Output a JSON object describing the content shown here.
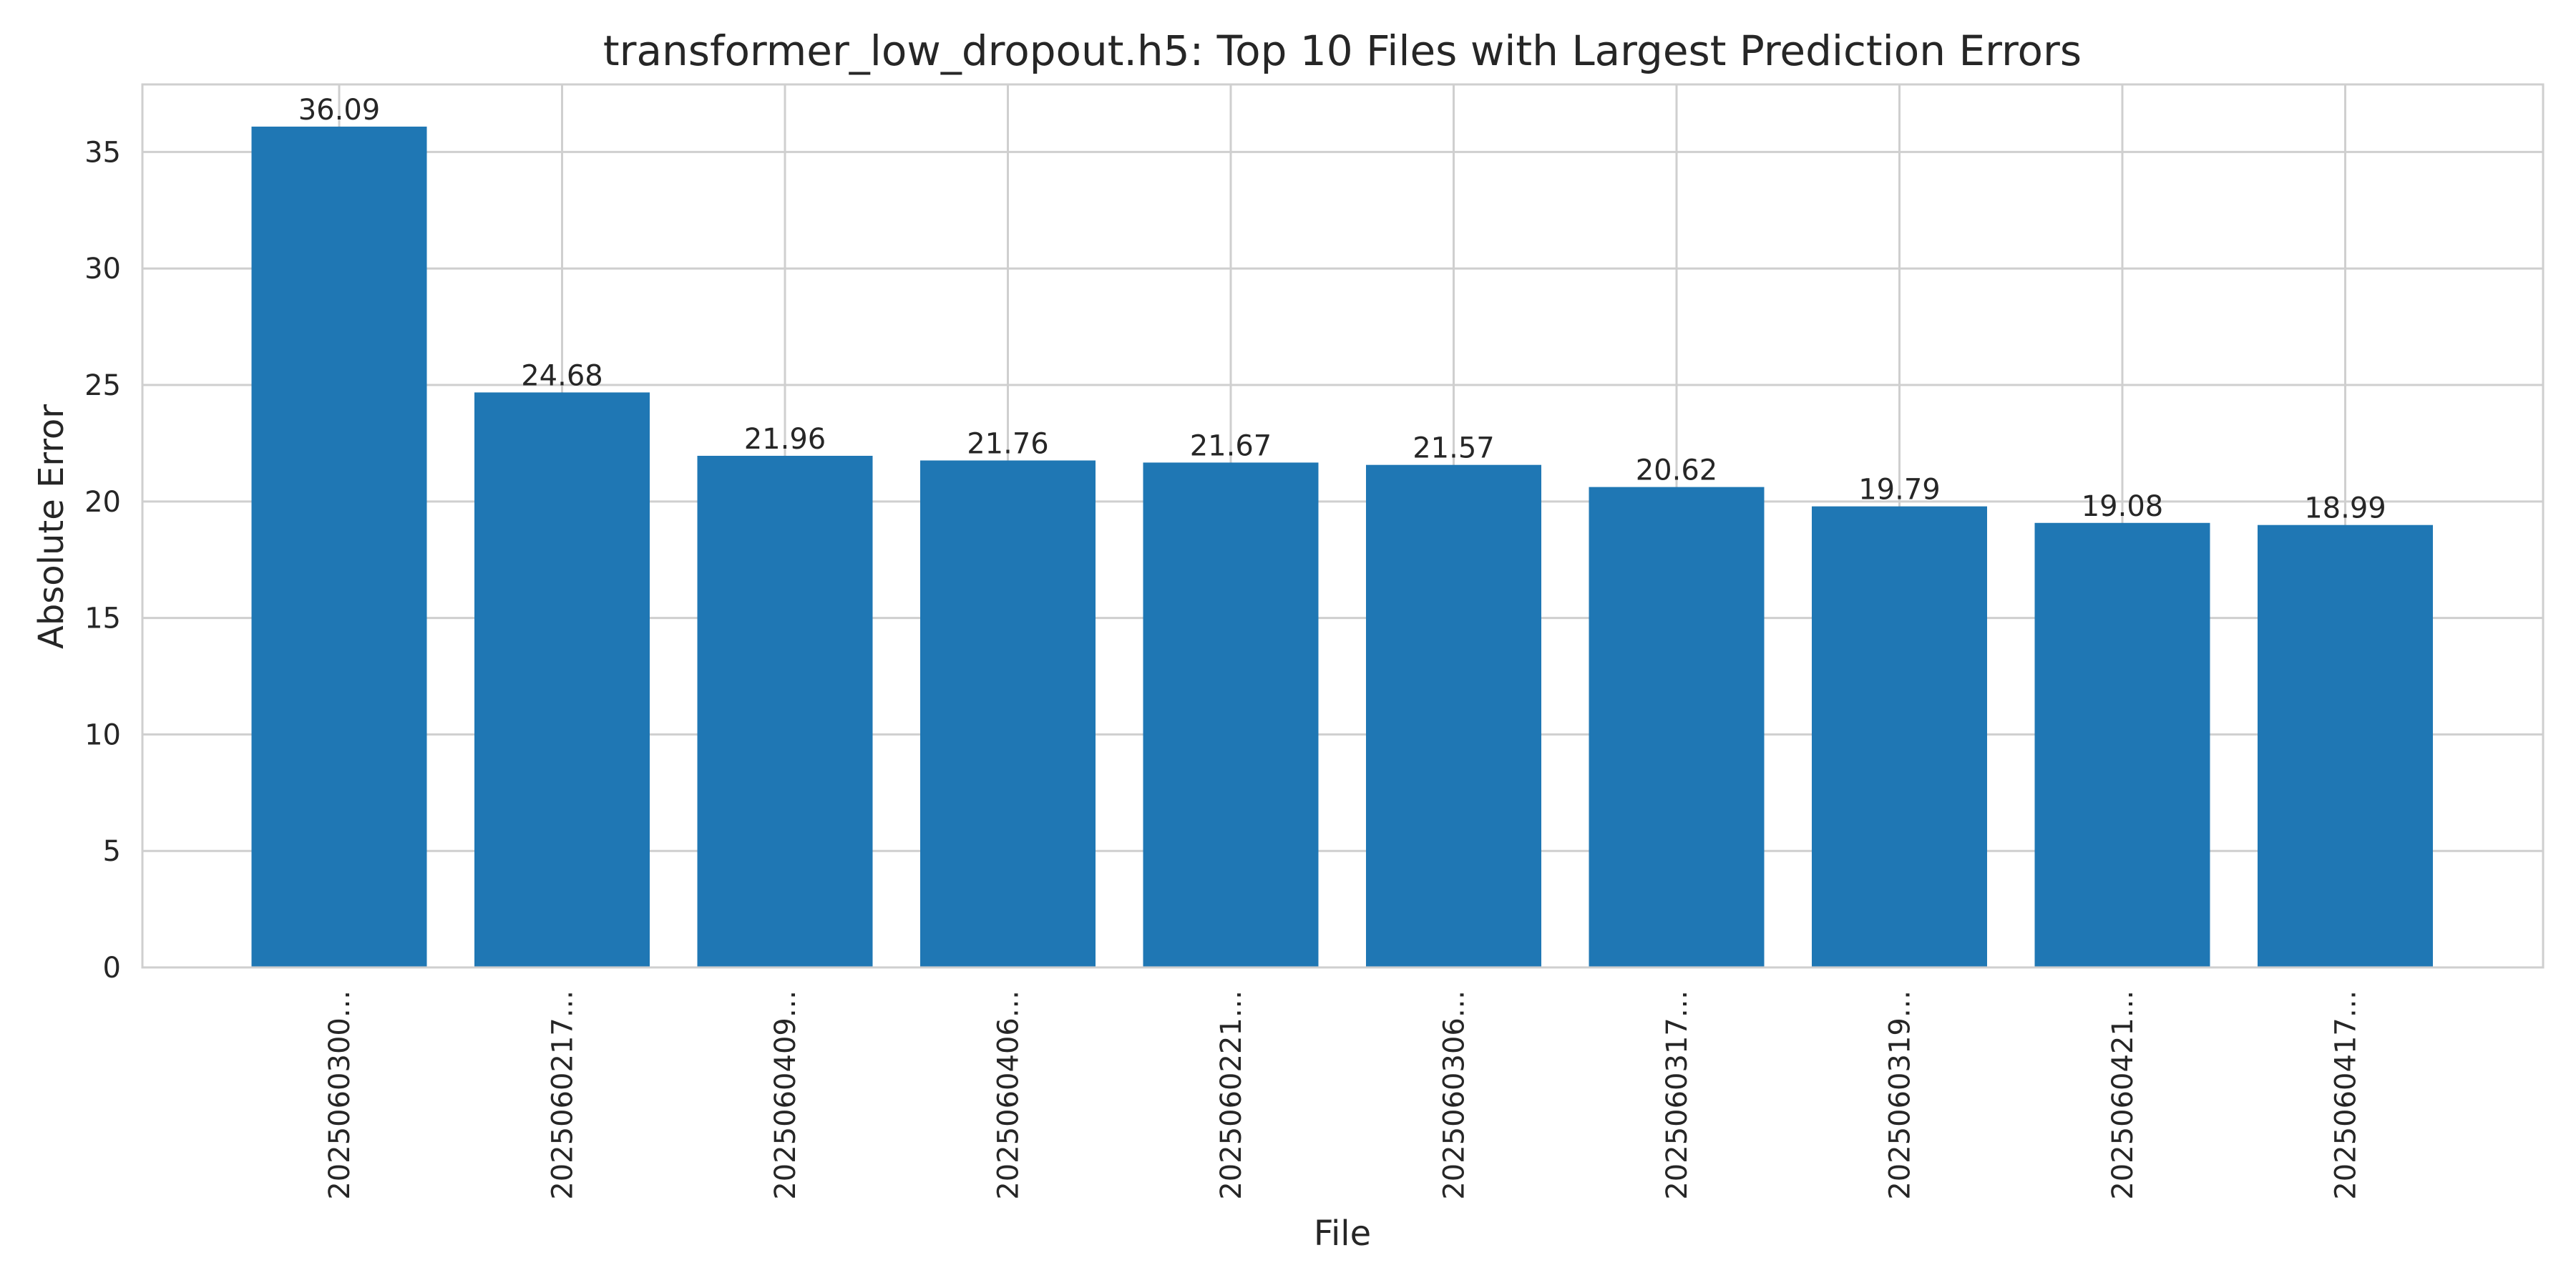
{
  "chart_data": {
    "type": "bar",
    "title": "transformer_low_dropout.h5: Top 10 Files with Largest Prediction Errors",
    "xlabel": "File",
    "ylabel": "Absolute Error",
    "categories": [
      "2025060300...",
      "2025060217...",
      "2025060409...",
      "2025060406...",
      "2025060221...",
      "2025060306...",
      "2025060317...",
      "2025060319...",
      "2025060421...",
      "2025060417..."
    ],
    "values": [
      36.09,
      24.68,
      21.96,
      21.76,
      21.67,
      21.57,
      20.62,
      19.79,
      19.08,
      18.99
    ],
    "value_labels": [
      "36.09",
      "24.68",
      "21.96",
      "21.76",
      "21.67",
      "21.57",
      "20.62",
      "19.79",
      "19.08",
      "18.99"
    ],
    "ylim": [
      0,
      37.9
    ],
    "yticks": [
      0,
      5,
      10,
      15,
      20,
      25,
      30,
      35
    ],
    "grid": true,
    "bar_color": "#1f77b4",
    "grid_color": "#cfcfcf"
  }
}
